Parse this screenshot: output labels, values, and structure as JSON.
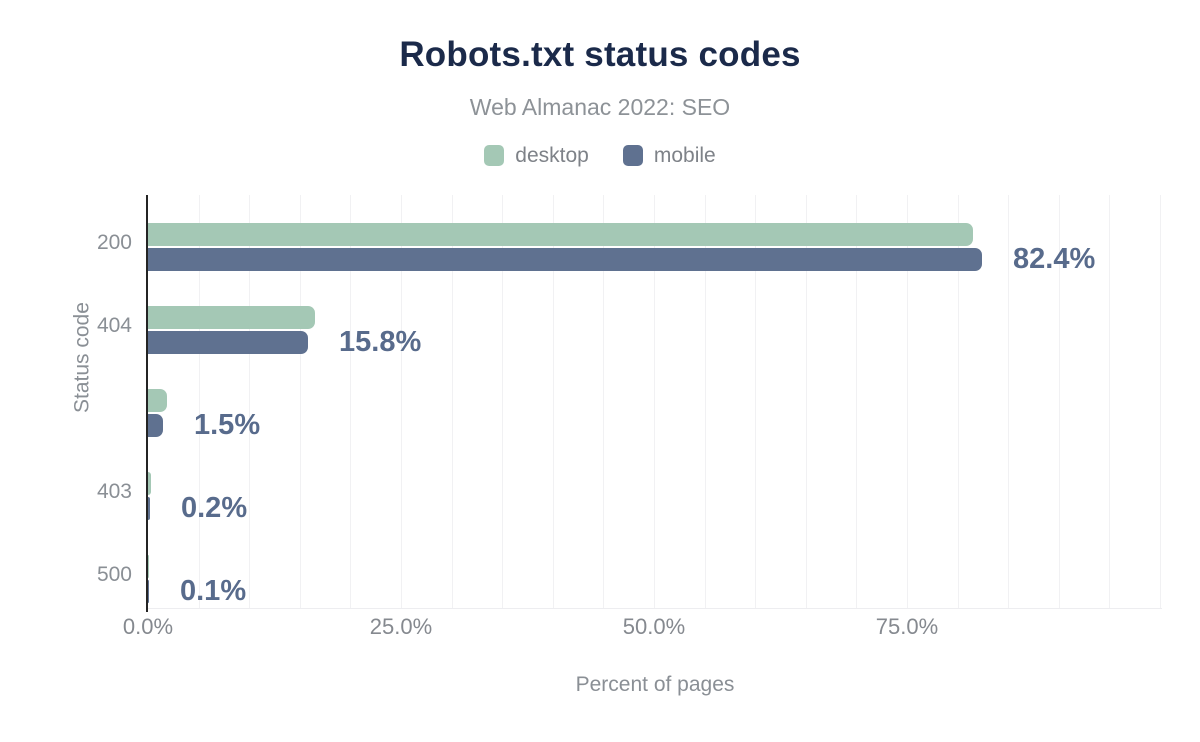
{
  "header": {
    "title": "Robots.txt status codes",
    "subtitle": "Web Almanac 2022: SEO"
  },
  "legend": [
    {
      "label": "desktop",
      "color": "#a4c8b5"
    },
    {
      "label": "mobile",
      "color": "#5f7190"
    }
  ],
  "chart_data": {
    "type": "bar",
    "orientation": "horizontal",
    "title": "Robots.txt status codes",
    "subtitle": "Web Almanac 2022: SEO",
    "categories": [
      "200",
      "404",
      "",
      "403",
      "500"
    ],
    "series": [
      {
        "name": "desktop",
        "color": "#a4c8b5",
        "values": [
          81.5,
          16.5,
          1.9,
          0.3,
          0.1
        ]
      },
      {
        "name": "mobile",
        "color": "#5f7190",
        "values": [
          82.4,
          15.8,
          1.5,
          0.2,
          0.1
        ]
      }
    ],
    "bar_labels": [
      "82.4%",
      "15.8%",
      "1.5%",
      "0.2%",
      "0.1%"
    ],
    "xlabel": "Percent of pages",
    "ylabel": "Status code",
    "xlim": [
      0,
      100
    ],
    "x_ticks": [
      {
        "value": 0,
        "label": "0.0%"
      },
      {
        "value": 25,
        "label": "25.0%"
      },
      {
        "value": 50,
        "label": "50.0%"
      },
      {
        "value": 75,
        "label": "75.0%"
      }
    ],
    "grid_step_pct": 5,
    "grid": true,
    "legend_position": "top"
  },
  "colors": {
    "title": "#1b2a4a",
    "subtitle": "#8d9297",
    "tick": "#8a8f95",
    "bar_label": "#586b8c",
    "gridline": "#f1f1f3",
    "axis": "#242424",
    "background": "#ffffff"
  }
}
